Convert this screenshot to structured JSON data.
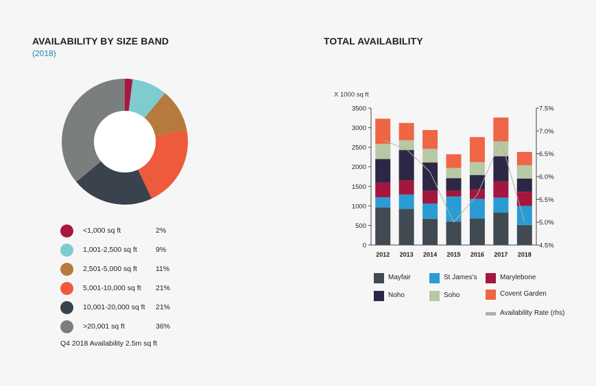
{
  "left_panel": {
    "title": "AVAILABILITY BY SIZE BAND",
    "subtitle": "(2018)",
    "note": "Q4 2018 Availability 2.5m sq ft"
  },
  "right_panel": {
    "title": "TOTAL AVAILABILITY"
  },
  "chart_data": [
    {
      "type": "pie",
      "title": "AVAILABILITY BY SIZE BAND",
      "subtitle": "(2018)",
      "donut": true,
      "slices": [
        {
          "label": "<1,000 sq ft",
          "value": 2,
          "display": "2%",
          "color": "#a8173f"
        },
        {
          "label": "1,001-2,500 sq ft",
          "value": 9,
          "display": "9%",
          "color": "#7ecbd0"
        },
        {
          "label": "2,501-5,000 sq ft",
          "value": 11,
          "display": "11%",
          "color": "#b57a3c"
        },
        {
          "label": "5,001-10,000 sq ft",
          "value": 21,
          "display": "21%",
          "color": "#ee5a3c"
        },
        {
          "label": "10,001-20,000 sq ft",
          "value": 21,
          "display": "21%",
          "color": "#3a424e"
        },
        {
          "label": ">20,001 sq ft",
          "value": 36,
          "display": "36%",
          "color": "#7b7e7e"
        }
      ]
    },
    {
      "type": "bar",
      "stacked": true,
      "title": "TOTAL AVAILABILITY",
      "ylabel": "X 1000 sq ft",
      "categories": [
        "2012",
        "2013",
        "2014",
        "2015",
        "2016",
        "2017",
        "2018"
      ],
      "ylim": [
        0,
        3500
      ],
      "yticks": [
        "3500",
        "3000",
        "2500",
        "2000",
        "1500",
        "1000",
        "500",
        "0"
      ],
      "y2lim": [
        4.5,
        7.5
      ],
      "y2ticks": [
        "7.5%",
        "7.0%",
        "6.5%",
        "6.0%",
        "5.5%",
        "5.0%",
        "4.5%"
      ],
      "series": [
        {
          "name": "Mayfair",
          "color": "#414a52",
          "values": [
            960,
            920,
            670,
            600,
            680,
            830,
            510
          ]
        },
        {
          "name": "St James's",
          "color": "#2b9bd3",
          "values": [
            260,
            370,
            390,
            640,
            500,
            380,
            490
          ]
        },
        {
          "name": "Marylebone",
          "color": "#a3173f",
          "values": [
            380,
            360,
            330,
            150,
            240,
            420,
            360
          ]
        },
        {
          "name": "Noho",
          "color": "#2e2645",
          "values": [
            600,
            780,
            720,
            320,
            370,
            640,
            340
          ]
        },
        {
          "name": "Soho",
          "color": "#b7c8a4",
          "values": [
            390,
            250,
            350,
            260,
            330,
            380,
            340
          ]
        },
        {
          "name": "Covent Garden",
          "color": "#ee6645",
          "values": [
            640,
            440,
            480,
            350,
            640,
            610,
            340
          ]
        }
      ],
      "line": {
        "name": "Availability Rate (rhs)",
        "color": "#b0b0b0",
        "values": [
          6.8,
          6.6,
          6.1,
          5.0,
          5.6,
          6.8,
          5.0
        ]
      }
    }
  ]
}
